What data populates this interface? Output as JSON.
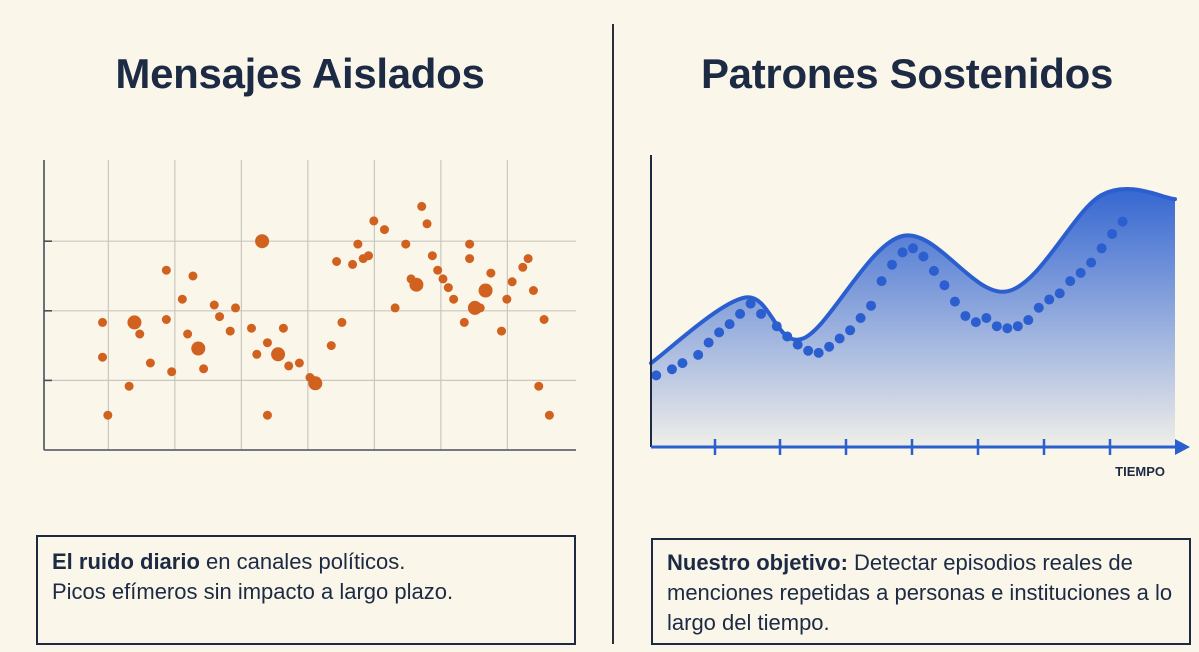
{
  "left": {
    "title": "Mensajes Aislados",
    "caption_bold": "El ruido diario",
    "caption_rest": " en canales políticos.",
    "caption_line2": "Picos efímeros sin impacto a largo plazo.",
    "dot_color": "#d0611f"
  },
  "right": {
    "title": "Patrones Sostenidos",
    "caption_bold": "Nuestro objetivo:",
    "caption_rest": " Detectar episodios reales de menciones repetidas a personas e instituciones a lo largo del tiempo.",
    "x_axis_label": "TIEMPO",
    "line_color": "#2b5fd0",
    "dot_color": "#2b5fd0"
  },
  "chart_data": [
    {
      "type": "scatter",
      "title": "Mensajes Aislados",
      "xlabel": "",
      "ylabel": "",
      "xlim": [
        0,
        100
      ],
      "ylim": [
        0,
        100
      ],
      "grid": true,
      "points": [
        [
          11,
          44
        ],
        [
          11,
          32
        ],
        [
          12,
          12
        ],
        [
          16,
          22
        ],
        [
          17,
          44
        ],
        [
          18,
          40
        ],
        [
          20,
          30
        ],
        [
          23,
          62
        ],
        [
          23,
          45
        ],
        [
          24,
          27
        ],
        [
          26,
          52
        ],
        [
          27,
          40
        ],
        [
          28,
          60
        ],
        [
          29,
          35
        ],
        [
          30,
          28
        ],
        [
          32,
          50
        ],
        [
          33,
          46
        ],
        [
          35,
          41
        ],
        [
          36,
          49
        ],
        [
          39,
          42
        ],
        [
          40,
          33
        ],
        [
          41,
          72
        ],
        [
          42,
          37
        ],
        [
          42,
          12
        ],
        [
          44,
          33
        ],
        [
          45,
          42
        ],
        [
          46,
          29
        ],
        [
          48,
          30
        ],
        [
          50,
          25
        ],
        [
          51,
          23
        ],
        [
          54,
          36
        ],
        [
          55,
          65
        ],
        [
          56,
          44
        ],
        [
          58,
          64
        ],
        [
          59,
          71
        ],
        [
          60,
          66
        ],
        [
          61,
          67
        ],
        [
          62,
          79
        ],
        [
          64,
          76
        ],
        [
          66,
          49
        ],
        [
          68,
          71
        ],
        [
          69,
          59
        ],
        [
          70,
          57
        ],
        [
          71,
          84
        ],
        [
          72,
          78
        ],
        [
          73,
          67
        ],
        [
          74,
          62
        ],
        [
          75,
          59
        ],
        [
          76,
          56
        ],
        [
          77,
          52
        ],
        [
          79,
          44
        ],
        [
          80,
          71
        ],
        [
          80,
          66
        ],
        [
          81,
          49
        ],
        [
          82,
          49
        ],
        [
          83,
          55
        ],
        [
          84,
          61
        ],
        [
          86,
          41
        ],
        [
          87,
          52
        ],
        [
          88,
          58
        ],
        [
          90,
          63
        ],
        [
          91,
          66
        ],
        [
          92,
          55
        ],
        [
          93,
          22
        ],
        [
          94,
          45
        ],
        [
          95,
          12
        ]
      ]
    },
    {
      "type": "line",
      "title": "Patrones Sostenidos",
      "xlabel": "TIEMPO",
      "ylabel": "",
      "xlim": [
        0,
        100
      ],
      "ylim": [
        0,
        100
      ],
      "grid": false,
      "x": [
        0,
        18,
        29,
        48,
        68,
        86,
        100
      ],
      "values": [
        18,
        50,
        30,
        80,
        53,
        100,
        98
      ],
      "points": [
        [
          1,
          12
        ],
        [
          4,
          15
        ],
        [
          6,
          18
        ],
        [
          9,
          22
        ],
        [
          11,
          28
        ],
        [
          13,
          33
        ],
        [
          15,
          37
        ],
        [
          17,
          42
        ],
        [
          19,
          47
        ],
        [
          21,
          42
        ],
        [
          24,
          36
        ],
        [
          26,
          31
        ],
        [
          28,
          27
        ],
        [
          30,
          24
        ],
        [
          32,
          23
        ],
        [
          34,
          26
        ],
        [
          36,
          30
        ],
        [
          38,
          34
        ],
        [
          40,
          40
        ],
        [
          42,
          46
        ],
        [
          44,
          58
        ],
        [
          46,
          66
        ],
        [
          48,
          72
        ],
        [
          50,
          74
        ],
        [
          52,
          70
        ],
        [
          54,
          63
        ],
        [
          56,
          56
        ],
        [
          58,
          48
        ],
        [
          60,
          41
        ],
        [
          62,
          38
        ],
        [
          64,
          40
        ],
        [
          66,
          36
        ],
        [
          68,
          35
        ],
        [
          70,
          36
        ],
        [
          72,
          39
        ],
        [
          74,
          45
        ],
        [
          76,
          49
        ],
        [
          78,
          52
        ],
        [
          80,
          58
        ],
        [
          82,
          62
        ],
        [
          84,
          67
        ],
        [
          86,
          74
        ],
        [
          88,
          81
        ],
        [
          90,
          87
        ]
      ]
    }
  ]
}
